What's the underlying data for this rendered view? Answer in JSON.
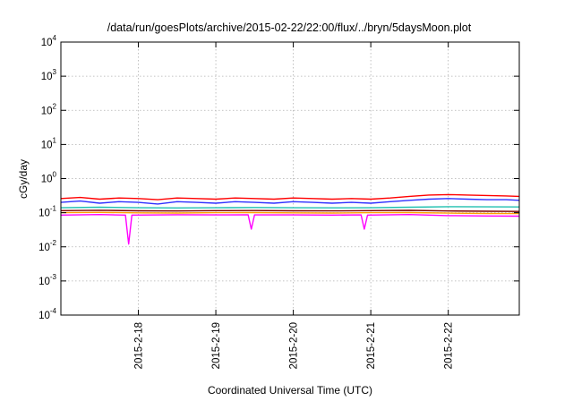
{
  "chart_data": {
    "type": "line",
    "title": "/data/run/goesPlots/archive/2015-02-22/22:00/flux/../bryn/5daysMoon.plot",
    "xlabel": "Coordinated Universal Time (UTC)",
    "ylabel": "cGy/day",
    "yscale": "log",
    "ylim": [
      0.0001,
      10000
    ],
    "xlim": [
      "2015-02-17T00:00",
      "2015-02-22T22:00"
    ],
    "grid": true,
    "legend": "none",
    "y_ticks": [
      {
        "value": 0.0001,
        "base": "10",
        "exp": "-4"
      },
      {
        "value": 0.001,
        "base": "10",
        "exp": "-3"
      },
      {
        "value": 0.01,
        "base": "10",
        "exp": "-2"
      },
      {
        "value": 0.1,
        "base": "10",
        "exp": "-1"
      },
      {
        "value": 1,
        "base": "10",
        "exp": "0"
      },
      {
        "value": 10,
        "base": "10",
        "exp": "1"
      },
      {
        "value": 100,
        "base": "10",
        "exp": "2"
      },
      {
        "value": 1000,
        "base": "10",
        "exp": "3"
      },
      {
        "value": 10000,
        "base": "10",
        "exp": "4"
      }
    ],
    "x_ticks": [
      {
        "value": "2015-02-18T00:00",
        "label": "2015-2-18"
      },
      {
        "value": "2015-02-19T00:00",
        "label": "2015-2-19"
      },
      {
        "value": "2015-02-20T00:00",
        "label": "2015-2-20"
      },
      {
        "value": "2015-02-21T00:00",
        "label": "2015-2-21"
      },
      {
        "value": "2015-02-22T00:00",
        "label": "2015-2-22"
      }
    ],
    "series": [
      {
        "color": "#ff0000",
        "points": [
          [
            "2015-02-17T00:00",
            0.26
          ],
          [
            "2015-02-17T06:00",
            0.28
          ],
          [
            "2015-02-17T12:00",
            0.25
          ],
          [
            "2015-02-17T18:00",
            0.27
          ],
          [
            "2015-02-18T00:00",
            0.26
          ],
          [
            "2015-02-18T06:00",
            0.24
          ],
          [
            "2015-02-18T12:00",
            0.27
          ],
          [
            "2015-02-18T18:00",
            0.26
          ],
          [
            "2015-02-19T00:00",
            0.25
          ],
          [
            "2015-02-19T06:00",
            0.27
          ],
          [
            "2015-02-19T12:00",
            0.26
          ],
          [
            "2015-02-19T18:00",
            0.25
          ],
          [
            "2015-02-20T00:00",
            0.27
          ],
          [
            "2015-02-20T06:00",
            0.26
          ],
          [
            "2015-02-20T12:00",
            0.25
          ],
          [
            "2015-02-20T18:00",
            0.26
          ],
          [
            "2015-02-21T00:00",
            0.25
          ],
          [
            "2015-02-21T06:00",
            0.27
          ],
          [
            "2015-02-21T12:00",
            0.3
          ],
          [
            "2015-02-21T18:00",
            0.33
          ],
          [
            "2015-02-22T00:00",
            0.34
          ],
          [
            "2015-02-22T06:00",
            0.33
          ],
          [
            "2015-02-22T12:00",
            0.32
          ],
          [
            "2015-02-22T18:00",
            0.31
          ],
          [
            "2015-02-22T22:00",
            0.3
          ]
        ]
      },
      {
        "color": "#3030ff",
        "points": [
          [
            "2015-02-17T00:00",
            0.2
          ],
          [
            "2015-02-17T06:00",
            0.22
          ],
          [
            "2015-02-17T12:00",
            0.19
          ],
          [
            "2015-02-17T18:00",
            0.21
          ],
          [
            "2015-02-18T00:00",
            0.2
          ],
          [
            "2015-02-18T06:00",
            0.18
          ],
          [
            "2015-02-18T12:00",
            0.21
          ],
          [
            "2015-02-18T18:00",
            0.2
          ],
          [
            "2015-02-19T00:00",
            0.19
          ],
          [
            "2015-02-19T06:00",
            0.21
          ],
          [
            "2015-02-19T12:00",
            0.2
          ],
          [
            "2015-02-19T18:00",
            0.19
          ],
          [
            "2015-02-20T00:00",
            0.21
          ],
          [
            "2015-02-20T06:00",
            0.2
          ],
          [
            "2015-02-20T12:00",
            0.19
          ],
          [
            "2015-02-20T18:00",
            0.2
          ],
          [
            "2015-02-21T00:00",
            0.19
          ],
          [
            "2015-02-21T06:00",
            0.21
          ],
          [
            "2015-02-21T12:00",
            0.23
          ],
          [
            "2015-02-21T18:00",
            0.25
          ],
          [
            "2015-02-22T00:00",
            0.26
          ],
          [
            "2015-02-22T06:00",
            0.25
          ],
          [
            "2015-02-22T12:00",
            0.24
          ],
          [
            "2015-02-22T18:00",
            0.24
          ],
          [
            "2015-02-22T22:00",
            0.23
          ]
        ]
      },
      {
        "color": "#20c0b0",
        "points": [
          [
            "2015-02-17T00:00",
            0.14
          ],
          [
            "2015-02-17T12:00",
            0.145
          ],
          [
            "2015-02-18T00:00",
            0.14
          ],
          [
            "2015-02-18T12:00",
            0.138
          ],
          [
            "2015-02-19T00:00",
            0.14
          ],
          [
            "2015-02-19T12:00",
            0.142
          ],
          [
            "2015-02-20T00:00",
            0.14
          ],
          [
            "2015-02-20T12:00",
            0.139
          ],
          [
            "2015-02-21T00:00",
            0.14
          ],
          [
            "2015-02-21T12:00",
            0.145
          ],
          [
            "2015-02-22T00:00",
            0.15
          ],
          [
            "2015-02-22T12:00",
            0.148
          ],
          [
            "2015-02-22T22:00",
            0.147
          ]
        ]
      },
      {
        "color": "#800000",
        "points": [
          [
            "2015-02-17T00:00",
            0.115
          ],
          [
            "2015-02-17T12:00",
            0.118
          ],
          [
            "2015-02-18T00:00",
            0.114
          ],
          [
            "2015-02-18T12:00",
            0.112
          ],
          [
            "2015-02-19T00:00",
            0.115
          ],
          [
            "2015-02-19T12:00",
            0.116
          ],
          [
            "2015-02-20T00:00",
            0.114
          ],
          [
            "2015-02-20T12:00",
            0.113
          ],
          [
            "2015-02-21T00:00",
            0.115
          ],
          [
            "2015-02-21T12:00",
            0.117
          ],
          [
            "2015-02-22T00:00",
            0.112
          ],
          [
            "2015-02-22T12:00",
            0.11
          ],
          [
            "2015-02-22T22:00",
            0.109
          ]
        ]
      },
      {
        "color": "#ffa000",
        "points": [
          [
            "2015-02-17T00:00",
            0.1
          ],
          [
            "2015-02-17T12:00",
            0.102
          ],
          [
            "2015-02-18T00:00",
            0.099
          ],
          [
            "2015-02-18T12:00",
            0.098
          ],
          [
            "2015-02-19T00:00",
            0.1
          ],
          [
            "2015-02-19T12:00",
            0.101
          ],
          [
            "2015-02-20T00:00",
            0.099
          ],
          [
            "2015-02-20T12:00",
            0.098
          ],
          [
            "2015-02-21T00:00",
            0.1
          ],
          [
            "2015-02-21T12:00",
            0.101
          ],
          [
            "2015-02-22T00:00",
            0.097
          ],
          [
            "2015-02-22T12:00",
            0.095
          ],
          [
            "2015-02-22T22:00",
            0.094
          ]
        ]
      },
      {
        "color": "#ff00ff",
        "points": [
          [
            "2015-02-17T00:00",
            0.085
          ],
          [
            "2015-02-17T12:00",
            0.088
          ],
          [
            "2015-02-17T20:00",
            0.085
          ],
          [
            "2015-02-17T21:00",
            0.012
          ],
          [
            "2015-02-17T22:00",
            0.085
          ],
          [
            "2015-02-18T12:00",
            0.087
          ],
          [
            "2015-02-19T00:00",
            0.086
          ],
          [
            "2015-02-19T10:00",
            0.087
          ],
          [
            "2015-02-19T11:00",
            0.033
          ],
          [
            "2015-02-19T12:00",
            0.086
          ],
          [
            "2015-02-20T00:00",
            0.086
          ],
          [
            "2015-02-20T12:00",
            0.085
          ],
          [
            "2015-02-20T21:00",
            0.086
          ],
          [
            "2015-02-20T22:00",
            0.033
          ],
          [
            "2015-02-20T23:00",
            0.085
          ],
          [
            "2015-02-21T12:00",
            0.088
          ],
          [
            "2015-02-22T00:00",
            0.082
          ],
          [
            "2015-02-22T12:00",
            0.08
          ],
          [
            "2015-02-22T22:00",
            0.079
          ]
        ]
      }
    ]
  }
}
